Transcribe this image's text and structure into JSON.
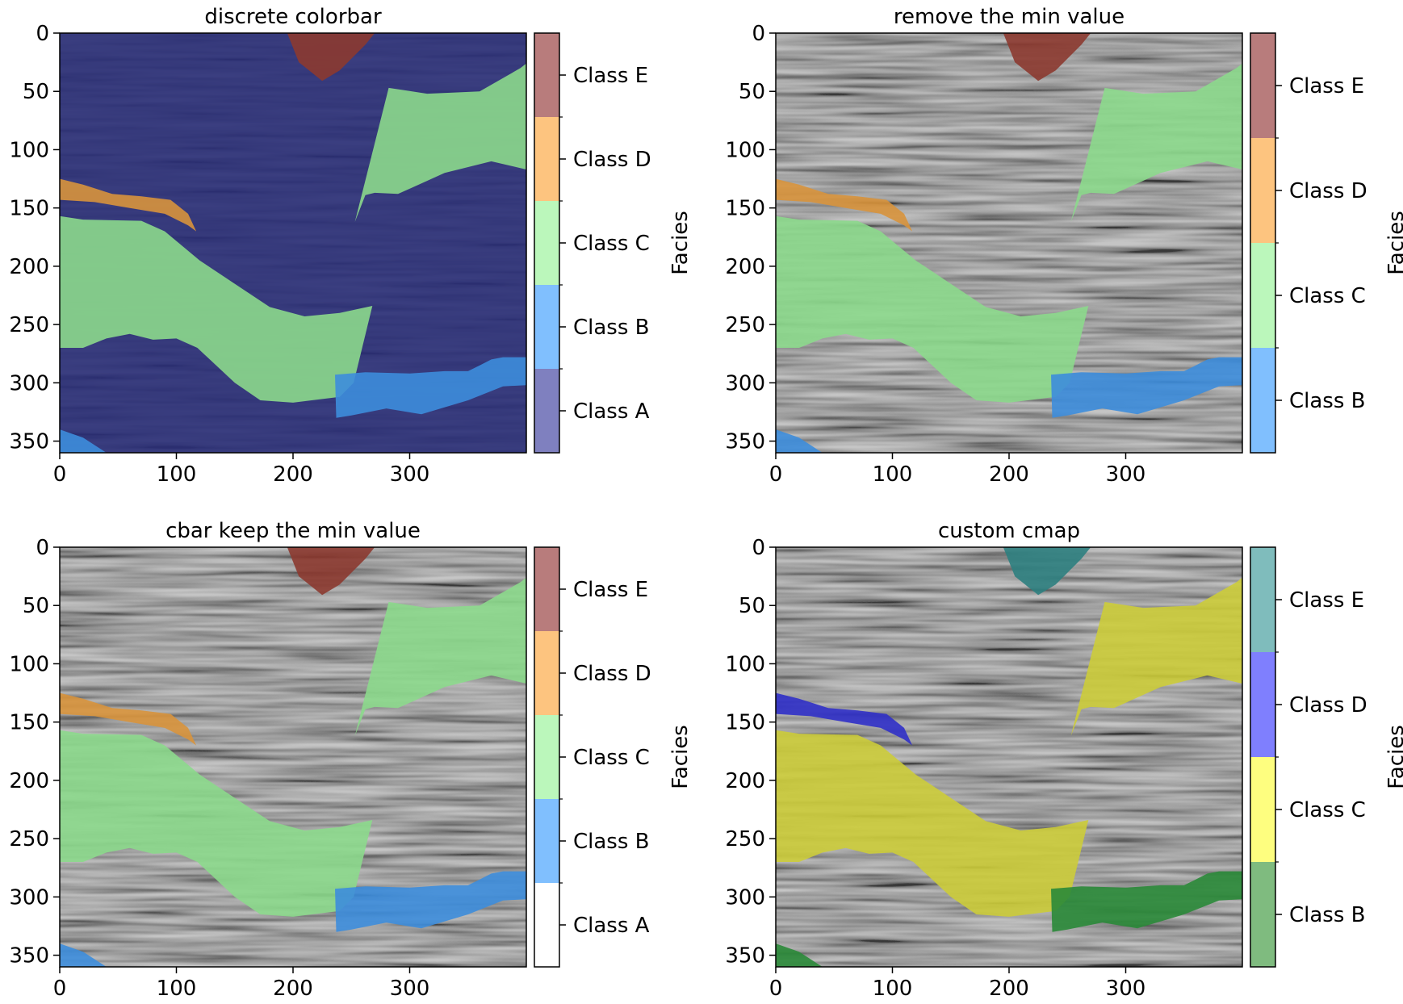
{
  "chart_data": [
    {
      "type": "heatmap",
      "title": "discrete colorbar",
      "background": "class_a",
      "xlim": [
        0,
        400
      ],
      "ylim": [
        360,
        0
      ],
      "xticks": [
        0,
        100,
        200,
        300
      ],
      "yticks": [
        0,
        50,
        100,
        150,
        200,
        250,
        300,
        350
      ],
      "colorbar": {
        "label": "Facies",
        "classes": [
          {
            "label": "Class E",
            "color": "#b87c7c"
          },
          {
            "label": "Class D",
            "color": "#fdc47f"
          },
          {
            "label": "Class C",
            "color": "#bbf7bb"
          },
          {
            "label": "Class B",
            "color": "#80bffe"
          },
          {
            "label": "Class A",
            "color": "#7f80bf"
          }
        ]
      },
      "overlay_colors": {
        "A": "#2e3278",
        "B": "#3d8ddc",
        "C": "#8cd98c",
        "D": "#d8943c",
        "E": "#8c3a30"
      }
    },
    {
      "type": "heatmap",
      "title": "remove the min value",
      "background": "seismic",
      "xlim": [
        0,
        400
      ],
      "ylim": [
        360,
        0
      ],
      "xticks": [
        0,
        100,
        200,
        300
      ],
      "yticks": [
        0,
        50,
        100,
        150,
        200,
        250,
        300,
        350
      ],
      "colorbar": {
        "label": "Facies",
        "classes": [
          {
            "label": "Class E",
            "color": "#b87c7c"
          },
          {
            "label": "Class D",
            "color": "#fdc47f"
          },
          {
            "label": "Class C",
            "color": "#bbf7bb"
          },
          {
            "label": "Class B",
            "color": "#80bffe"
          }
        ]
      },
      "overlay_colors": {
        "B": "#3d8ddc",
        "C": "#8cd98c",
        "D": "#d8943c",
        "E": "#8c3a30"
      }
    },
    {
      "type": "heatmap",
      "title": "cbar keep the min value",
      "background": "seismic",
      "xlim": [
        0,
        400
      ],
      "ylim": [
        360,
        0
      ],
      "xticks": [
        0,
        100,
        200,
        300
      ],
      "yticks": [
        0,
        50,
        100,
        150,
        200,
        250,
        300,
        350
      ],
      "colorbar": {
        "label": "Facies",
        "classes": [
          {
            "label": "Class E",
            "color": "#b87c7c"
          },
          {
            "label": "Class D",
            "color": "#fdc47f"
          },
          {
            "label": "Class C",
            "color": "#bbf7bb"
          },
          {
            "label": "Class B",
            "color": "#80bffe"
          },
          {
            "label": "Class A",
            "color": "#ffffff"
          }
        ]
      },
      "overlay_colors": {
        "B": "#3d8ddc",
        "C": "#8cd98c",
        "D": "#d8943c",
        "E": "#8c3a30"
      }
    },
    {
      "type": "heatmap",
      "title": "custom cmap",
      "background": "seismic",
      "xlim": [
        0,
        400
      ],
      "ylim": [
        360,
        0
      ],
      "xticks": [
        0,
        100,
        200,
        300
      ],
      "yticks": [
        0,
        50,
        100,
        150,
        200,
        250,
        300,
        350
      ],
      "colorbar": {
        "label": "Facies",
        "classes": [
          {
            "label": "Class E",
            "color": "#7fbcbc"
          },
          {
            "label": "Class D",
            "color": "#7f7ffe"
          },
          {
            "label": "Class C",
            "color": "#fefe7f"
          },
          {
            "label": "Class B",
            "color": "#7fbb7f"
          }
        ]
      },
      "overlay_colors": {
        "B": "#2a8a38",
        "C": "#cccc3a",
        "D": "#3030c8",
        "E": "#2e8080"
      }
    }
  ]
}
